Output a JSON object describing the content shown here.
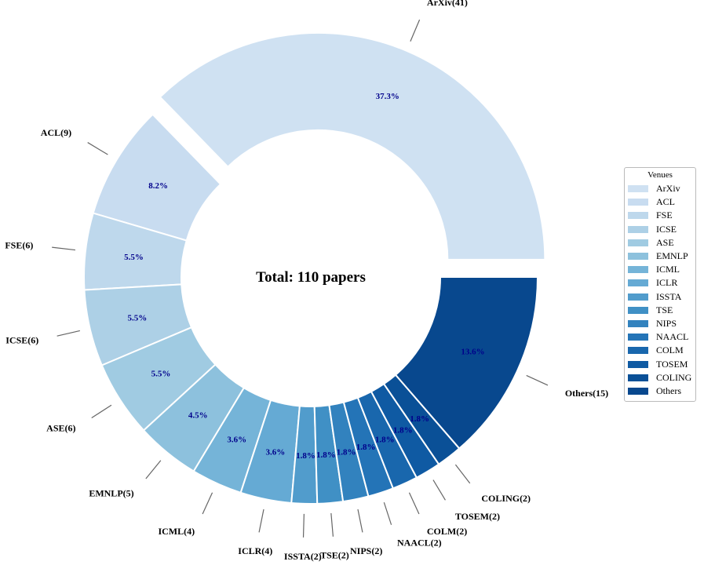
{
  "chart_data": {
    "type": "pie",
    "style": "donut",
    "center_text": "Total: 110 papers",
    "legend_title": "Venues",
    "legend_position": "right",
    "slices": [
      {
        "name": "ArXiv",
        "value": 41,
        "label": "ArXiv(41)",
        "pct": "37.3%",
        "color": "#cfe1f2",
        "exploded": true
      },
      {
        "name": "ACL",
        "value": 9,
        "label": "ACL(9)",
        "pct": "8.2%",
        "color": "#c8dcf0"
      },
      {
        "name": "FSE",
        "value": 6,
        "label": "FSE(6)",
        "pct": "5.5%",
        "color": "#bed8ec"
      },
      {
        "name": "ICSE",
        "value": 6,
        "label": "ICSE(6)",
        "pct": "5.5%",
        "color": "#add0e6"
      },
      {
        "name": "ASE",
        "value": 6,
        "label": "ASE(6)",
        "pct": "5.5%",
        "color": "#a0cbe2"
      },
      {
        "name": "EMNLP",
        "value": 5,
        "label": "EMNLP(5)",
        "pct": "4.5%",
        "color": "#8dc1dd"
      },
      {
        "name": "ICML",
        "value": 4,
        "label": "ICML(4)",
        "pct": "3.6%",
        "color": "#75b4d8"
      },
      {
        "name": "ICLR",
        "value": 4,
        "label": "ICLR(4)",
        "pct": "3.6%",
        "color": "#65aad4"
      },
      {
        "name": "ISSTA",
        "value": 2,
        "label": "ISSTA(2)",
        "pct": "1.8%",
        "color": "#519ccc"
      },
      {
        "name": "TSE",
        "value": 2,
        "label": "TSE(2)",
        "pct": "1.8%",
        "color": "#4090c5"
      },
      {
        "name": "NIPS",
        "value": 2,
        "label": "NIPS(2)",
        "pct": "1.8%",
        "color": "#3282be"
      },
      {
        "name": "NAACL",
        "value": 2,
        "label": "NAACL(2)",
        "pct": "1.8%",
        "color": "#2474b7"
      },
      {
        "name": "COLM",
        "value": 2,
        "label": "COLM(2)",
        "pct": "1.8%",
        "color": "#1967ad"
      },
      {
        "name": "TOSEM",
        "value": 2,
        "label": "TOSEM(2)",
        "pct": "1.8%",
        "color": "#0f5aa3"
      },
      {
        "name": "COLING",
        "value": 2,
        "label": "COLING(2)",
        "pct": "1.8%",
        "color": "#0a5097"
      },
      {
        "name": "Others",
        "value": 15,
        "label": "Others(15)",
        "pct": "13.6%",
        "color": "#08488e"
      }
    ]
  }
}
